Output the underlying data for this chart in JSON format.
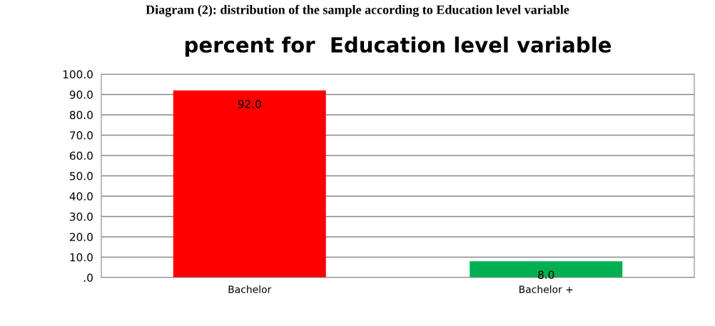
{
  "chart_data": {
    "type": "bar",
    "title": "percent for  Education level variable",
    "annotations": [
      "Diagram (2): distribution of the sample according to Education level variable"
    ],
    "categories": [
      "Bachelor",
      "Bachelor +"
    ],
    "values": [
      92,
      8
    ],
    "colors": [
      "#ff0000",
      "#00b050"
    ],
    "value_labels": [
      "92.0",
      "8.0"
    ],
    "ylim": [
      0,
      100
    ],
    "yticks": [
      {
        "value": 0,
        "label": ".0"
      },
      {
        "value": 10,
        "label": "10.0"
      },
      {
        "value": 20,
        "label": "20.0"
      },
      {
        "value": 30,
        "label": "30.0"
      },
      {
        "value": 40,
        "label": "40.0"
      },
      {
        "value": 50,
        "label": "50.0"
      },
      {
        "value": 60,
        "label": "60.0"
      },
      {
        "value": 70,
        "label": "70.0"
      },
      {
        "value": 80,
        "label": "80.0"
      },
      {
        "value": 90,
        "label": "90.0"
      },
      {
        "value": 100,
        "label": "100.0"
      }
    ],
    "grid": "y"
  }
}
